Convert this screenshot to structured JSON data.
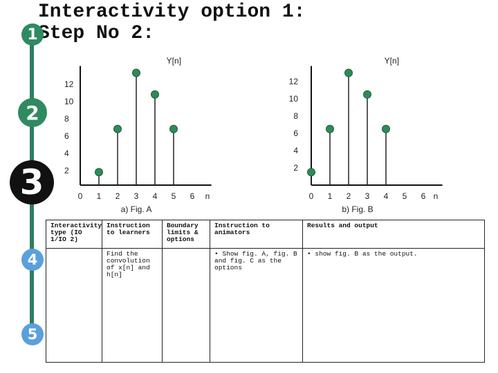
{
  "title_lines": [
    "Interactivity option 1:",
    "Step No 2:"
  ],
  "steps": [
    "1",
    "2",
    "3",
    "4",
    "5"
  ],
  "colors": {
    "rail": "#2e7d5e",
    "stem": "#222222",
    "marker": "#2e8b57",
    "marker_edge": "#1d5e3a"
  },
  "chart_data": [
    {
      "type": "scatter",
      "style": "stem",
      "title": "a)   Fig. A",
      "ylabel": "Y[n]",
      "xlabel": "n",
      "x_ticks": [
        "0",
        "1",
        "2",
        "3",
        "4",
        "5",
        "6"
      ],
      "y_ticks": [
        "12",
        "10",
        "8",
        "6",
        "4",
        "2"
      ],
      "xlim": [
        0,
        6.8
      ],
      "ylim": [
        0,
        13
      ],
      "points": [
        {
          "x": 1,
          "y": 1.5
        },
        {
          "x": 2,
          "y": 6.5
        },
        {
          "x": 3,
          "y": 13
        },
        {
          "x": 4,
          "y": 10.5
        },
        {
          "x": 5,
          "y": 6.5
        }
      ]
    },
    {
      "type": "scatter",
      "style": "stem",
      "title": "b)   Fig. B",
      "ylabel": "Y[n]",
      "xlabel": "n",
      "x_ticks": [
        "0",
        "1",
        "2",
        "3",
        "4",
        "5",
        "6"
      ],
      "y_ticks": [
        "12",
        "10",
        "8",
        "6",
        "4",
        "2"
      ],
      "xlim": [
        0,
        6.8
      ],
      "ylim": [
        0,
        13
      ],
      "points": [
        {
          "x": 0,
          "y": 1.5
        },
        {
          "x": 1,
          "y": 6.5
        },
        {
          "x": 2,
          "y": 13
        },
        {
          "x": 3,
          "y": 10.5
        },
        {
          "x": 4,
          "y": 6.5
        }
      ]
    }
  ],
  "table": {
    "headers": [
      "Interactivity type (IO 1/IO 2)",
      "Instruction to learners",
      "Boundary limits & options",
      "Instruction to animators",
      "Results and output"
    ],
    "row": [
      "",
      "Find the convolution of x[n] and h[n]",
      "",
      "• Show fig. A, fig. B and fig. C as the options",
      "• show fig. B as the output."
    ]
  }
}
